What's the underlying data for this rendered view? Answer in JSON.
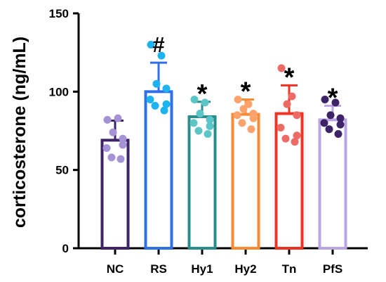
{
  "chart_data": {
    "type": "bar",
    "ylabel": "corticosterone (ng/mL)",
    "ylim": [
      0,
      150
    ],
    "yticks": [
      "0",
      "50",
      "100",
      "150"
    ],
    "grid": false,
    "categories": [
      "NC",
      "RS",
      "Hy1",
      "Hy2",
      "Tn",
      "PfS"
    ],
    "values": [
      69,
      100,
      84,
      85.5,
      86,
      82
    ],
    "error": [
      12.5,
      18.5,
      9.5,
      9.5,
      18,
      9
    ],
    "significance": [
      "",
      "#",
      "*",
      "*",
      "*",
      "*"
    ],
    "colors": [
      "#3d2468",
      "#2f6fe8",
      "#2b8c8c",
      "#f78a32",
      "#ee3324",
      "#b9a5e3"
    ],
    "point_colors": [
      "#a593d6",
      "#1db3ee",
      "#5cc6c6",
      "#fba36b",
      "#ee6a64",
      "#3d2468"
    ],
    "points": [
      [
        82,
        83,
        74,
        70,
        64,
        66,
        58,
        57
      ],
      [
        130,
        123,
        105,
        102,
        95,
        92,
        91,
        88
      ],
      [
        95,
        93,
        86,
        82,
        80,
        78,
        75,
        73
      ],
      [
        95,
        92,
        89,
        86,
        85,
        83,
        80,
        76
      ],
      [
        115,
        97,
        92,
        85,
        77,
        72,
        70,
        68
      ],
      [
        95,
        93,
        85,
        83,
        80,
        79,
        76,
        73
      ]
    ]
  }
}
